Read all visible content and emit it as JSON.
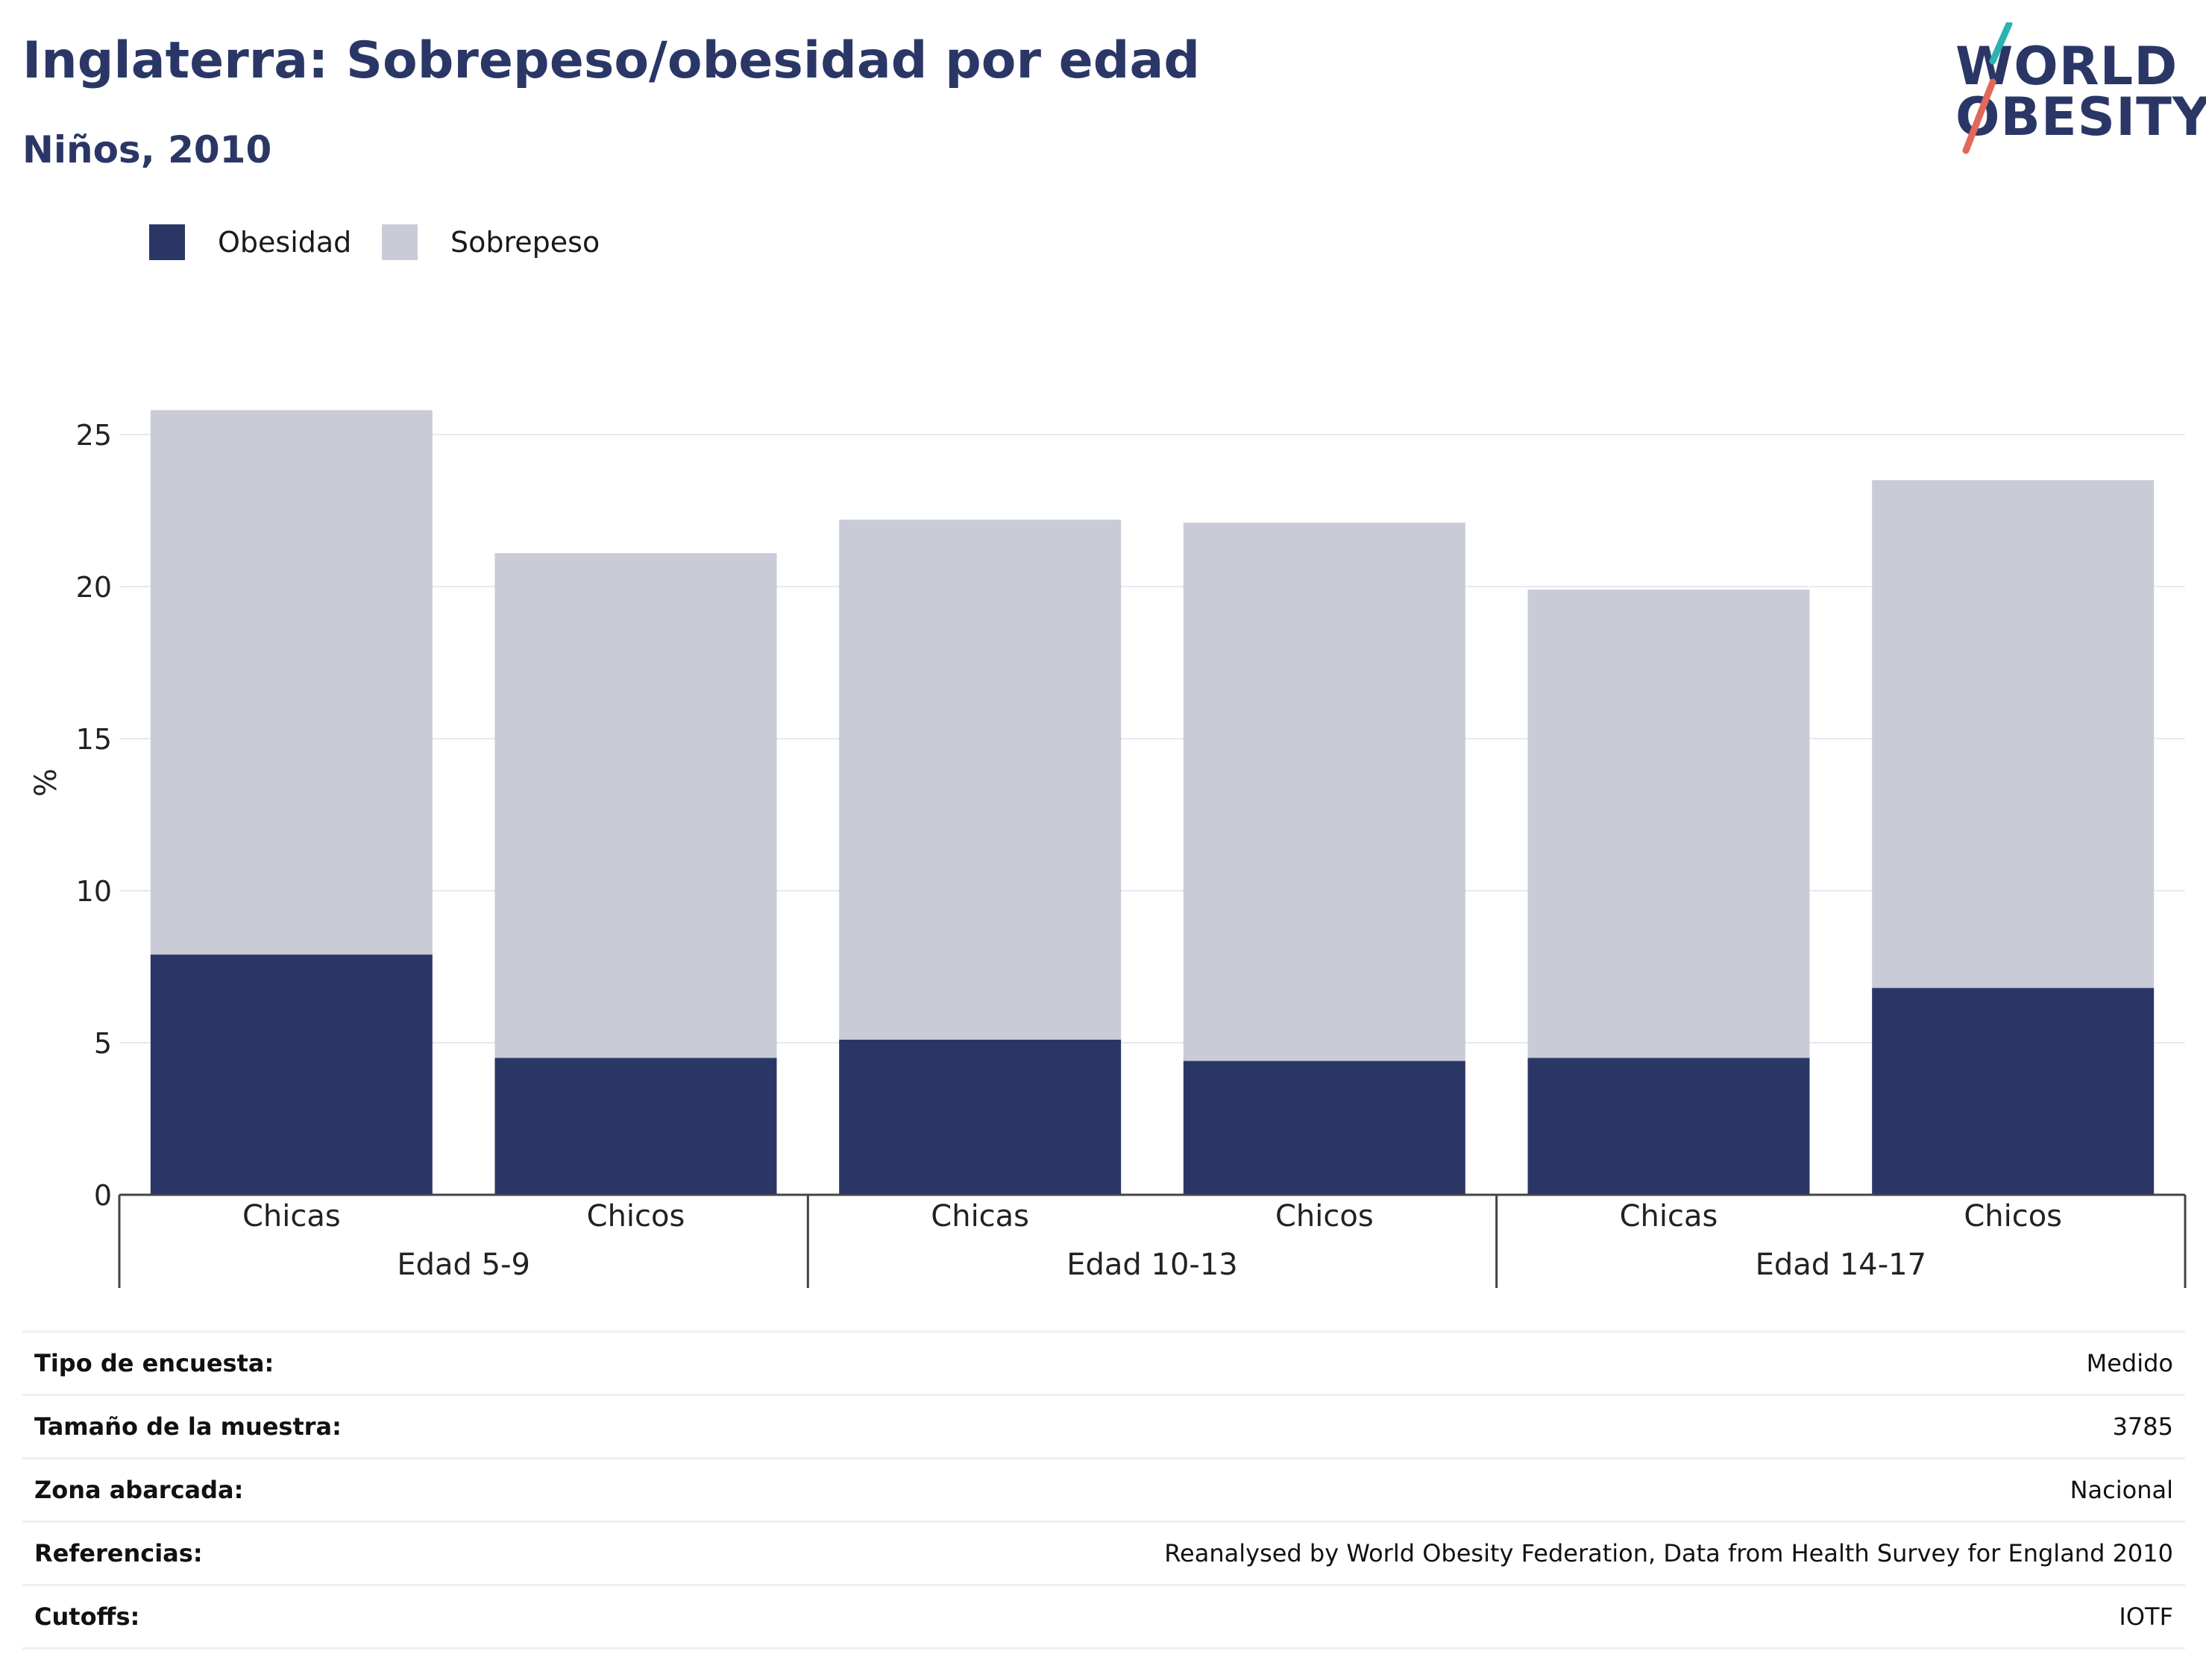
{
  "header": {
    "title": "Inglaterra: Sobrepeso/obesidad por edad",
    "subtitle": "Niños, 2010"
  },
  "logo": {
    "line1": "WORLD",
    "line2": "OBESITY",
    "accent_teal": "#2bb3b1",
    "accent_red": "#e2685a"
  },
  "colors": {
    "obesity": "#2a3766",
    "overweight": "#c9cbd7",
    "grid": "#e8eaf0",
    "axis": "#444444"
  },
  "chart_data": {
    "type": "bar",
    "stacked": true,
    "title": "",
    "ylabel": "%",
    "ylim": [
      0,
      25
    ],
    "yticks": [
      0,
      5,
      10,
      15,
      20,
      25
    ],
    "categories": [
      "Chicas",
      "Chicos",
      "Chicas",
      "Chicos",
      "Chicas",
      "Chicos"
    ],
    "groups": [
      "Edad 5-9",
      "Edad 10-13",
      "Edad 14-17"
    ],
    "series": [
      {
        "name": "Obesidad",
        "values": [
          7.9,
          4.5,
          5.1,
          4.4,
          4.5,
          6.8
        ]
      },
      {
        "name": "Sobrepeso",
        "values": [
          17.9,
          16.6,
          17.1,
          17.7,
          15.4,
          16.7
        ]
      }
    ],
    "grid": true,
    "legend": "top-left"
  },
  "info": [
    {
      "label": "Tipo de encuesta:",
      "value": "Medido"
    },
    {
      "label": "Tamaño de la muestra:",
      "value": "3785"
    },
    {
      "label": "Zona abarcada:",
      "value": "Nacional"
    },
    {
      "label": "Referencias:",
      "value": "Reanalysed by World Obesity Federation, Data from Health Survey for England 2010"
    },
    {
      "label": "Cutoffs:",
      "value": "IOTF"
    }
  ]
}
